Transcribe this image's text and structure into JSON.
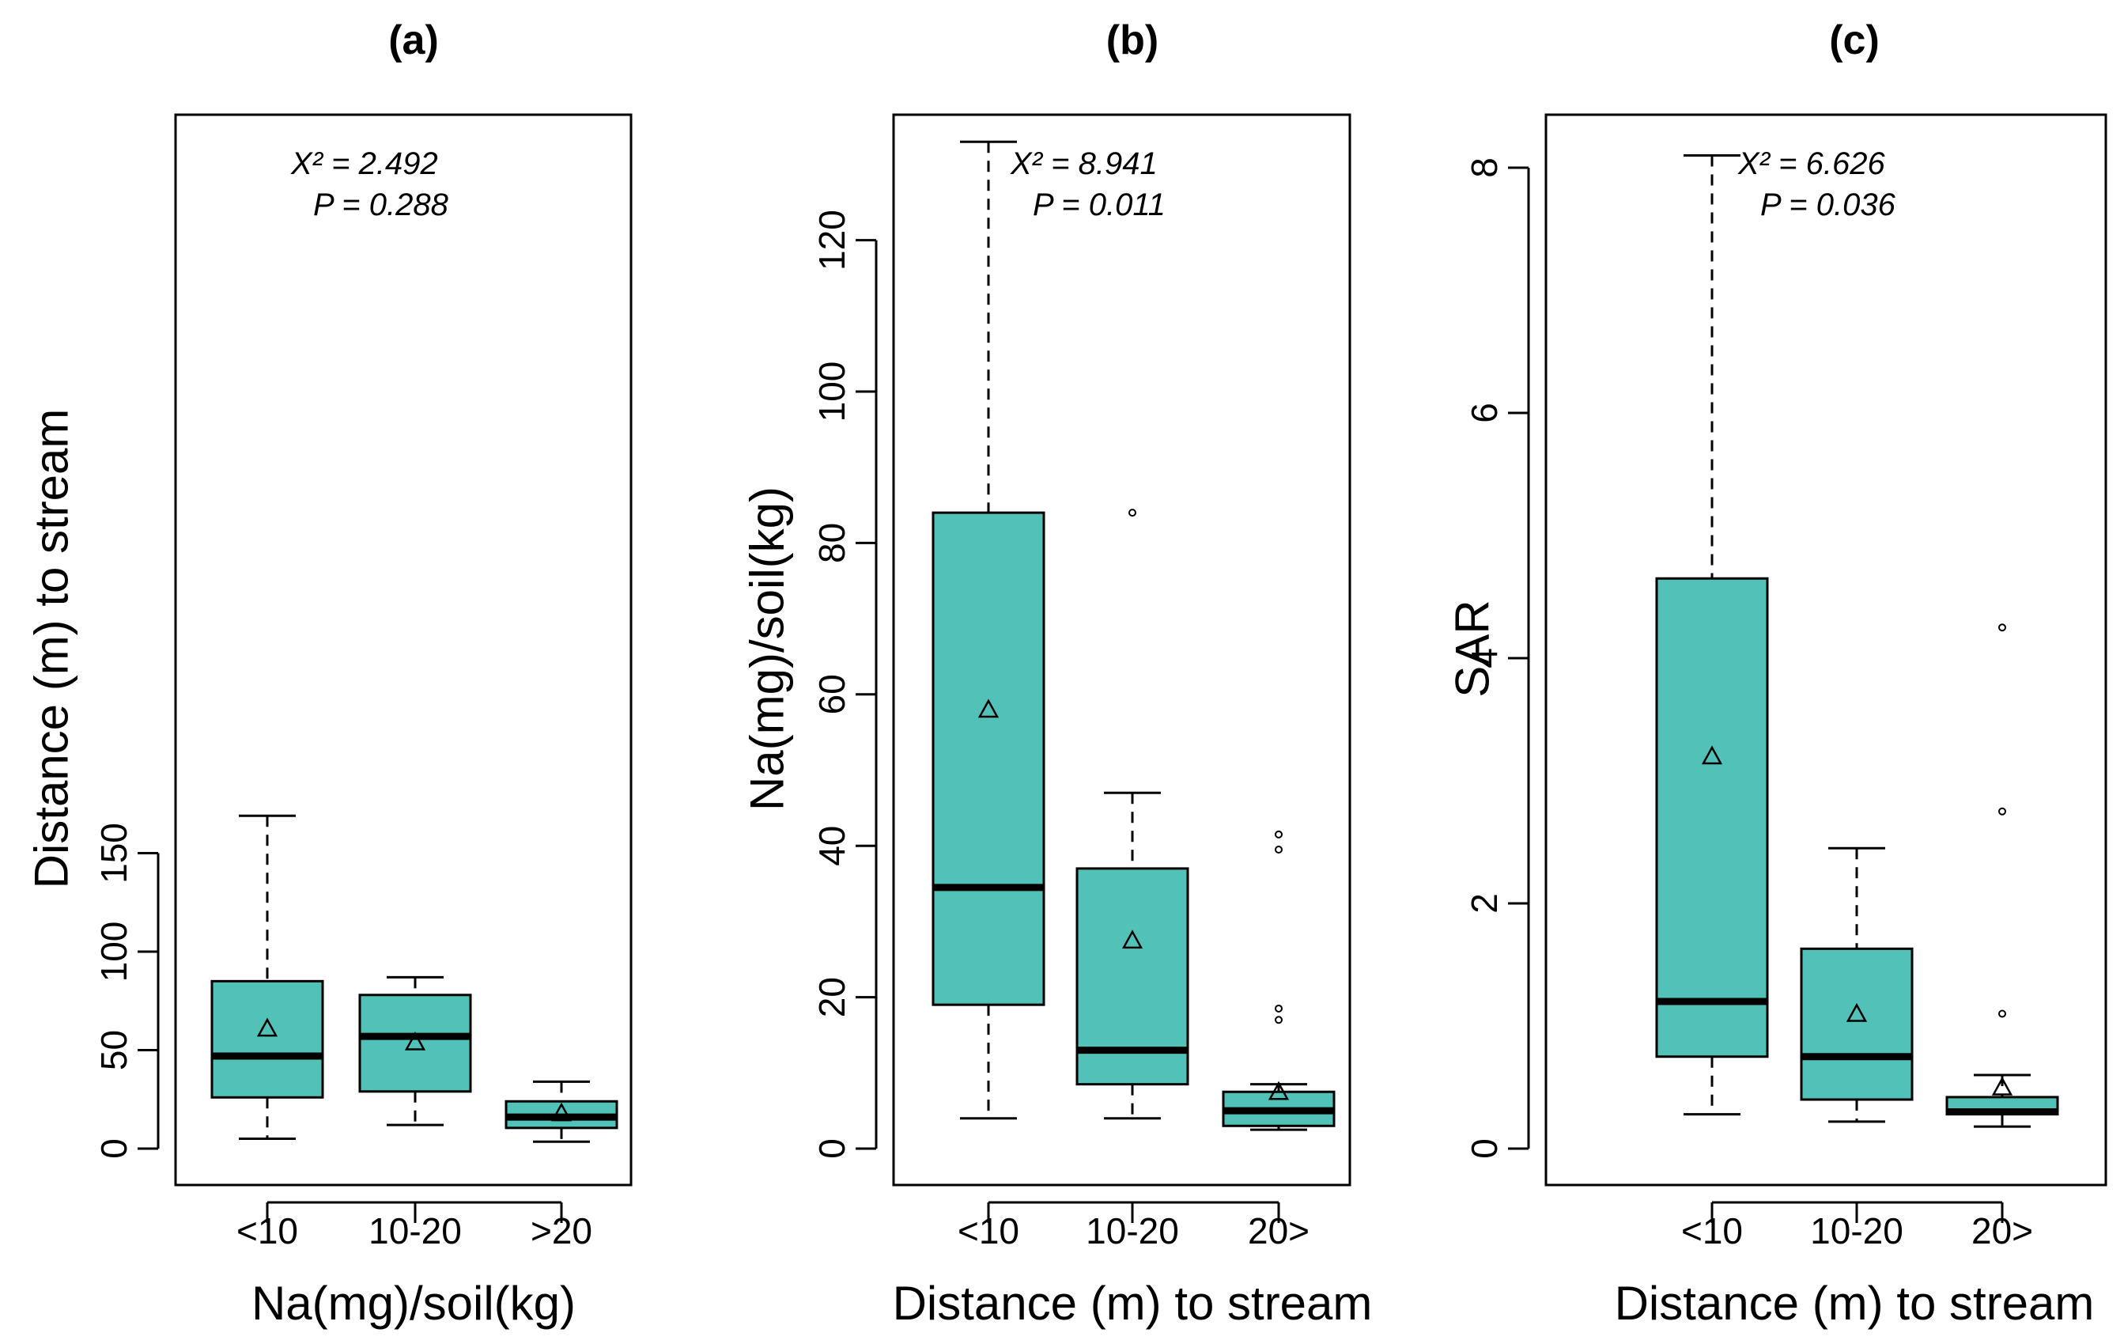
{
  "chart_data": [
    {
      "type": "boxplot",
      "panel": "(a)",
      "title": "(a)",
      "xlabel": "Na(mg)/soil(kg)",
      "ylabel": "Distance (m) to stream",
      "ylim": [
        0,
        175
      ],
      "yticks": [
        0,
        50,
        100,
        150
      ],
      "categories": [
        "<10",
        "10-20",
        ">20"
      ],
      "color": "#52c2b8",
      "boxes": [
        {
          "whisker_low": 5,
          "q1": 26,
          "median": 47,
          "q3": 85,
          "whisker_high": 169,
          "mean": 61,
          "outliers": []
        },
        {
          "whisker_low": 12,
          "q1": 29,
          "median": 57,
          "q3": 78,
          "whisker_high": 87,
          "mean": 54,
          "outliers": []
        },
        {
          "whisker_low": 3.5,
          "q1": 10.5,
          "median": 16,
          "q3": 24,
          "whisker_high": 34,
          "mean": 18,
          "outliers": []
        }
      ],
      "stat_chi_label": "X² = 2.492",
      "stat_p_label": "P = 0.288"
    },
    {
      "type": "boxplot",
      "panel": "(b)",
      "title": "(b)",
      "xlabel": "Distance (m) to stream",
      "ylabel": "Na(mg)/soil(kg)",
      "ylim": [
        0,
        137
      ],
      "yticks": [
        0,
        20,
        40,
        60,
        80,
        100,
        120
      ],
      "categories": [
        "<10",
        "10-20",
        "20>"
      ],
      "color": "#52c2b8",
      "boxes": [
        {
          "whisker_low": 4,
          "q1": 19,
          "median": 34.5,
          "q3": 84,
          "whisker_high": 133,
          "mean": 58,
          "outliers": []
        },
        {
          "whisker_low": 4,
          "q1": 8.5,
          "median": 13,
          "q3": 37,
          "whisker_high": 47,
          "mean": 27.5,
          "outliers": [
            84
          ]
        },
        {
          "whisker_low": 2.5,
          "q1": 3,
          "median": 5,
          "q3": 7.5,
          "whisker_high": 8.5,
          "mean": 7.5,
          "outliers": [
            17,
            18.5,
            39.5,
            41.5
          ]
        }
      ],
      "stat_chi_label": "X² = 8.941",
      "stat_p_label": "P = 0.011"
    },
    {
      "type": "boxplot",
      "panel": "(c)",
      "title": "(c)",
      "xlabel": "Distance (m) to stream",
      "ylabel": "SAR",
      "ylim": [
        0,
        8.5
      ],
      "yticks": [
        0,
        2,
        4,
        6,
        8
      ],
      "categories": [
        "<10",
        "10-20",
        "20>"
      ],
      "color": "#52c2b8",
      "boxes": [
        {
          "whisker_low": 0.28,
          "q1": 0.75,
          "median": 1.2,
          "q3": 4.65,
          "whisker_high": 8.1,
          "mean": 3.2,
          "outliers": []
        },
        {
          "whisker_low": 0.22,
          "q1": 0.4,
          "median": 0.75,
          "q3": 1.63,
          "whisker_high": 2.45,
          "mean": 1.1,
          "outliers": []
        },
        {
          "whisker_low": 0.18,
          "q1": 0.28,
          "median": 0.3,
          "q3": 0.42,
          "whisker_high": 0.6,
          "mean": 0.5,
          "outliers": [
            1.1,
            2.75,
            4.25
          ]
        }
      ],
      "stat_chi_label": "X² = 6.626",
      "stat_p_label": "P = 0.036"
    }
  ]
}
